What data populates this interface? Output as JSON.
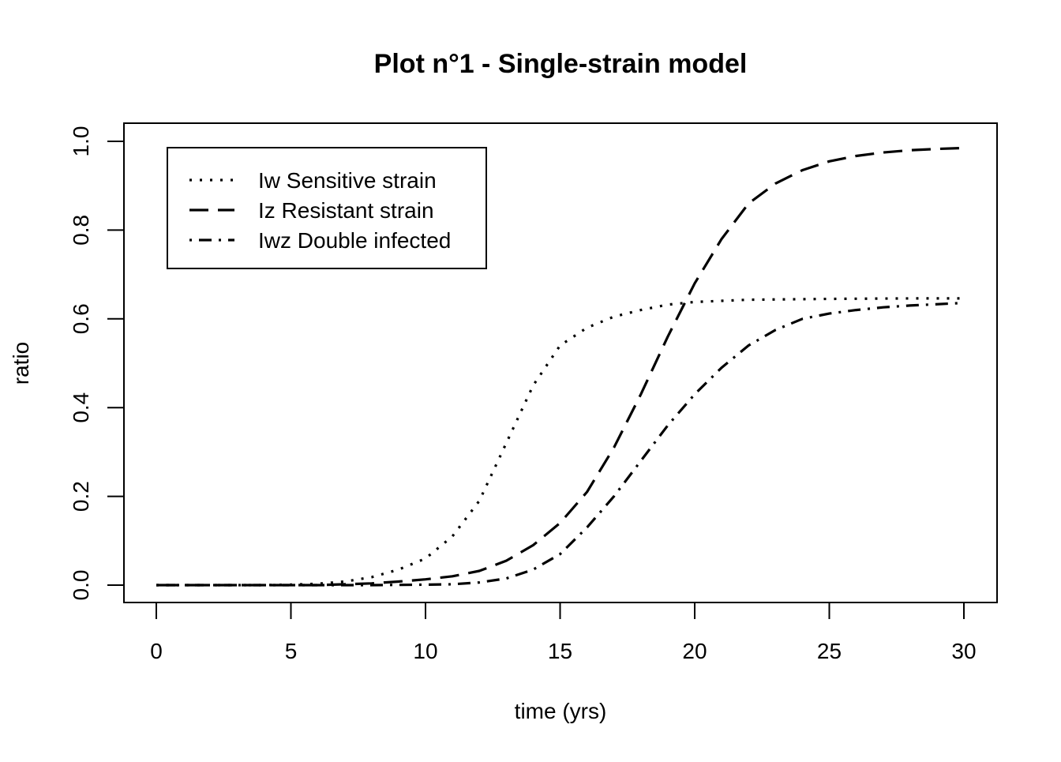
{
  "chart_data": {
    "type": "line",
    "title": "Plot n°1 - Single-strain model",
    "xlabel": "time (yrs)",
    "ylabel": "ratio",
    "xlim": [
      0,
      30
    ],
    "ylim": [
      0,
      1
    ],
    "x_ticks": [
      0,
      5,
      10,
      15,
      20,
      25,
      30
    ],
    "x_tick_labels": [
      "0",
      "5",
      "10",
      "15",
      "20",
      "25",
      "30"
    ],
    "y_ticks": [
      0,
      0.2,
      0.4,
      0.6,
      0.8,
      1.0
    ],
    "y_tick_labels": [
      "0.0",
      "0.2",
      "0.4",
      "0.6",
      "0.8",
      "1.0"
    ],
    "grid": false,
    "legend_position": "top-left",
    "series": [
      {
        "name": "Iw Sensitive strain",
        "line_style": "dotted",
        "color": "#000000",
        "x": [
          0,
          2,
          4,
          5,
          6,
          7,
          8,
          9,
          10,
          11,
          12,
          13,
          14,
          15,
          16,
          17,
          18,
          19,
          20,
          22,
          25,
          28,
          30
        ],
        "y": [
          0,
          0,
          0,
          0.001,
          0.003,
          0.008,
          0.018,
          0.035,
          0.06,
          0.11,
          0.19,
          0.32,
          0.45,
          0.54,
          0.58,
          0.605,
          0.62,
          0.632,
          0.638,
          0.643,
          0.645,
          0.646,
          0.646
        ]
      },
      {
        "name": "Iz Resistant strain",
        "line_style": "dashed",
        "color": "#000000",
        "x": [
          0,
          2,
          4,
          6,
          8,
          9,
          10,
          11,
          12,
          13,
          14,
          15,
          16,
          17,
          18,
          19,
          20,
          21,
          22,
          23,
          24,
          25,
          26,
          27,
          28,
          29,
          30
        ],
        "y": [
          0,
          0,
          0,
          0,
          0.004,
          0.008,
          0.013,
          0.02,
          0.032,
          0.055,
          0.09,
          0.14,
          0.21,
          0.31,
          0.43,
          0.56,
          0.68,
          0.78,
          0.86,
          0.905,
          0.935,
          0.955,
          0.967,
          0.975,
          0.98,
          0.983,
          0.985
        ]
      },
      {
        "name": "Iwz Double infected",
        "line_style": "dotdash",
        "color": "#000000",
        "x": [
          0,
          4,
          8,
          10,
          11,
          12,
          13,
          14,
          15,
          16,
          17,
          18,
          19,
          20,
          21,
          22,
          23,
          24,
          25,
          26,
          27,
          28,
          30
        ],
        "y": [
          0,
          0,
          0,
          0.001,
          0.002,
          0.006,
          0.015,
          0.035,
          0.07,
          0.13,
          0.2,
          0.28,
          0.36,
          0.43,
          0.49,
          0.54,
          0.575,
          0.6,
          0.612,
          0.62,
          0.626,
          0.63,
          0.636
        ]
      }
    ]
  }
}
